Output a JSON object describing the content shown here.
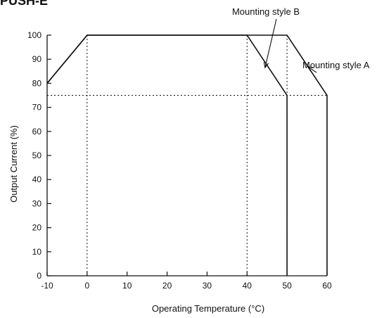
{
  "header": {
    "text": "PUSH-E"
  },
  "chart_data": {
    "type": "line",
    "title": "",
    "xlabel": "Operating Temperature (°C)",
    "ylabel": "Output Current (%)",
    "xlim": [
      -10,
      60
    ],
    "ylim": [
      0,
      100
    ],
    "x_ticks": [
      "-10",
      "0",
      "10",
      "20",
      "30",
      "40",
      "50",
      "60"
    ],
    "y_ticks": [
      "0",
      "10",
      "20",
      "30",
      "40",
      "50",
      "60",
      "70",
      "80",
      "90",
      "100"
    ],
    "grid": false,
    "series": [
      {
        "name": "Mounting style A",
        "points": [
          [
            -10,
            80
          ],
          [
            0,
            100
          ],
          [
            50,
            100
          ],
          [
            60,
            75
          ],
          [
            60,
            0
          ]
        ]
      },
      {
        "name": "Mounting style B",
        "points": [
          [
            -10,
            80
          ],
          [
            0,
            100
          ],
          [
            40,
            100
          ],
          [
            50,
            75
          ],
          [
            50,
            0
          ]
        ]
      }
    ],
    "reference_lines": {
      "horizontal": [
        75
      ],
      "vertical": [
        0,
        40,
        50
      ]
    },
    "annotations": [
      {
        "text": "Mounting style B",
        "target": [
          44.5,
          86.5
        ]
      },
      {
        "text": "Mounting style A",
        "target": [
          55.2,
          86.9
        ]
      }
    ]
  }
}
